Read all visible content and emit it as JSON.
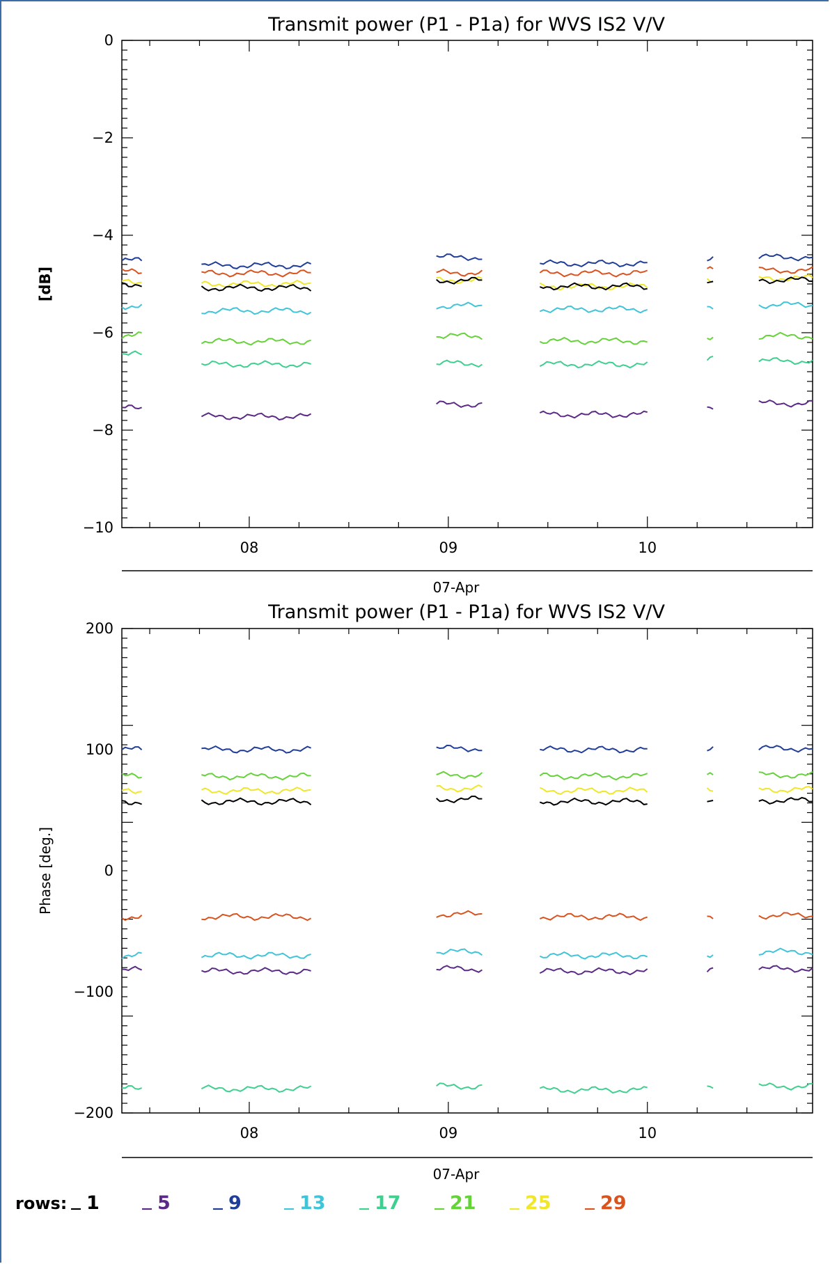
{
  "chart_data": [
    {
      "type": "line",
      "title": "Transmit power (P1 - P1a) for WVS IS2 V/V",
      "xlabel": "07-Apr",
      "ylabel": "[dB]",
      "xlim": [
        7.36,
        10.83
      ],
      "ylim": [
        -10,
        0
      ],
      "x_ticks": [
        8,
        9,
        10
      ],
      "x_tick_labels": [
        "08",
        "09",
        "10"
      ],
      "y_ticks": [
        0,
        -2,
        -4,
        -6,
        -8,
        -10
      ],
      "y_tick_labels": [
        "0",
        "−2",
        "−4",
        "−6",
        "−8",
        "−10"
      ],
      "segments": [
        [
          7.36,
          7.46
        ],
        [
          7.76,
          8.31
        ],
        [
          8.94,
          9.17
        ],
        [
          9.46,
          10.0
        ],
        [
          10.3,
          10.33
        ],
        [
          10.56,
          10.83
        ]
      ],
      "series": [
        {
          "row": 9,
          "values": [
            -4.52,
            -4.62,
            -4.45,
            -4.58,
            -4.5,
            -4.45
          ]
        },
        {
          "row": 29,
          "values": [
            -4.75,
            -4.78,
            -4.77,
            -4.78,
            -4.72,
            -4.72
          ]
        },
        {
          "row": 25,
          "values": [
            -4.95,
            -5.0,
            -4.92,
            -5.05,
            -4.95,
            -4.88
          ]
        },
        {
          "row": 1,
          "values": [
            -5.0,
            -5.08,
            -4.93,
            -5.05,
            -4.95,
            -4.92
          ]
        },
        {
          "row": 13,
          "values": [
            -5.45,
            -5.55,
            -5.45,
            -5.52,
            -5.45,
            -5.43
          ]
        },
        {
          "row": 21,
          "values": [
            -6.05,
            -6.18,
            -6.07,
            -6.17,
            -6.08,
            -6.07
          ]
        },
        {
          "row": 17,
          "values": [
            -6.45,
            -6.65,
            -6.63,
            -6.65,
            -6.53,
            -6.58
          ]
        },
        {
          "row": 5,
          "values": [
            -7.55,
            -7.72,
            -7.47,
            -7.68,
            -7.58,
            -7.45
          ]
        }
      ]
    },
    {
      "type": "line",
      "title": "Transmit power (P1 - P1a) for WVS IS2 V/V",
      "xlabel": "07-Apr",
      "ylabel": "Phase [deg.]",
      "xlim": [
        7.36,
        10.83
      ],
      "ylim": [
        -200,
        200
      ],
      "x_ticks": [
        8,
        9,
        10
      ],
      "x_tick_labels": [
        "08",
        "09",
        "10"
      ],
      "y_ticks": [
        200,
        100,
        0,
        -100,
        -200
      ],
      "y_tick_labels": [
        "200",
        "100",
        "0",
        "−100",
        "−200"
      ],
      "segments": [
        [
          7.36,
          7.46
        ],
        [
          7.76,
          8.31
        ],
        [
          8.94,
          9.17
        ],
        [
          9.46,
          10.0
        ],
        [
          10.3,
          10.33
        ],
        [
          10.56,
          10.83
        ]
      ],
      "series": [
        {
          "row": 9,
          "values": [
            100,
            100,
            101,
            100,
            100,
            101
          ]
        },
        {
          "row": 21,
          "values": [
            78,
            78,
            79,
            78,
            78,
            79
          ]
        },
        {
          "row": 25,
          "values": [
            66,
            66,
            68,
            66,
            66,
            67
          ]
        },
        {
          "row": 1,
          "values": [
            57,
            57,
            59,
            57,
            58,
            58
          ]
        },
        {
          "row": 29,
          "values": [
            -38,
            -38,
            -36,
            -38,
            -37,
            -37
          ]
        },
        {
          "row": 13,
          "values": [
            -70,
            -70,
            -67,
            -70,
            -69,
            -67
          ]
        },
        {
          "row": 5,
          "values": [
            -82,
            -83,
            -81,
            -83,
            -82,
            -81
          ]
        },
        {
          "row": 17,
          "values": [
            -180,
            -180,
            -178,
            -181,
            -180,
            -178
          ]
        }
      ]
    }
  ],
  "legend": {
    "label": "rows:",
    "items": [
      {
        "row": 1,
        "label": "1",
        "color": "#000000"
      },
      {
        "row": 5,
        "label": "5",
        "color": "#5b2a86"
      },
      {
        "row": 9,
        "label": "9",
        "color": "#1f3d99"
      },
      {
        "row": 13,
        "label": "13",
        "color": "#3fc4d8"
      },
      {
        "row": 17,
        "label": "17",
        "color": "#3fcf8f"
      },
      {
        "row": 21,
        "label": "21",
        "color": "#66d23a"
      },
      {
        "row": 25,
        "label": "25",
        "color": "#f0e62a"
      },
      {
        "row": 29,
        "label": "29",
        "color": "#d9531e"
      }
    ]
  }
}
